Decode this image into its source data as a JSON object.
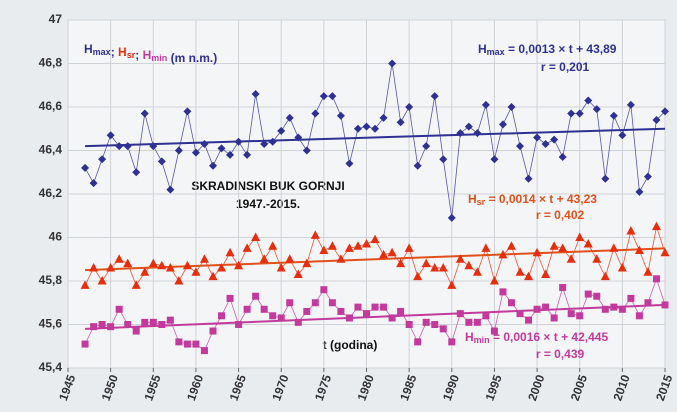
{
  "chart_data": {
    "type": "line",
    "title": "SKRADINSKI BUK GORNJI",
    "subtitle": "1947.-2015.",
    "x_label": "t (godina)",
    "x": [
      1947,
      1948,
      1949,
      1950,
      1951,
      1952,
      1953,
      1954,
      1955,
      1956,
      1957,
      1958,
      1959,
      1960,
      1961,
      1962,
      1963,
      1964,
      1965,
      1966,
      1967,
      1968,
      1969,
      1970,
      1971,
      1972,
      1973,
      1974,
      1975,
      1976,
      1977,
      1978,
      1979,
      1980,
      1981,
      1982,
      1983,
      1984,
      1985,
      1986,
      1987,
      1988,
      1989,
      1990,
      1991,
      1992,
      1993,
      1994,
      1995,
      1996,
      1997,
      1998,
      1999,
      2000,
      2001,
      2002,
      2003,
      2004,
      2005,
      2006,
      2007,
      2008,
      2009,
      2010,
      2011,
      2012,
      2013,
      2014,
      2015
    ],
    "series": [
      {
        "name": "H",
        "sub": "max",
        "color": "#2e3192",
        "marker": "diamond",
        "values": [
          46.32,
          46.25,
          46.36,
          46.47,
          46.42,
          46.42,
          46.3,
          46.57,
          46.42,
          46.35,
          46.22,
          46.4,
          46.58,
          46.39,
          46.43,
          46.33,
          46.41,
          46.38,
          46.44,
          46.38,
          46.66,
          46.43,
          46.44,
          46.49,
          46.55,
          46.46,
          46.4,
          46.57,
          46.65,
          46.65,
          46.56,
          46.34,
          46.5,
          46.51,
          46.5,
          46.55,
          46.8,
          46.53,
          46.6,
          46.33,
          46.42,
          46.65,
          46.36,
          46.09,
          46.48,
          46.51,
          46.48,
          46.61,
          46.36,
          46.52,
          46.6,
          46.42,
          46.27,
          46.46,
          46.43,
          46.45,
          46.37,
          46.57,
          46.57,
          46.63,
          46.59,
          46.27,
          46.56,
          46.47,
          46.61,
          46.21,
          46.28,
          46.54,
          46.58
        ]
      },
      {
        "name": "H",
        "sub": "sr",
        "color": "#e62e0e",
        "marker": "triangle",
        "values": [
          45.78,
          45.86,
          45.8,
          45.86,
          45.9,
          45.88,
          45.78,
          45.84,
          45.88,
          45.87,
          45.86,
          45.8,
          45.87,
          45.84,
          45.9,
          45.82,
          45.86,
          45.93,
          45.87,
          45.95,
          46.0,
          45.9,
          45.96,
          45.86,
          45.9,
          45.83,
          45.88,
          46.01,
          45.94,
          45.96,
          45.9,
          45.95,
          45.96,
          45.97,
          45.99,
          45.92,
          45.93,
          45.88,
          45.95,
          45.82,
          45.88,
          45.86,
          45.86,
          45.78,
          45.9,
          45.87,
          45.84,
          45.95,
          45.8,
          45.92,
          45.96,
          45.84,
          45.82,
          45.93,
          45.83,
          45.96,
          45.95,
          45.9,
          46.0,
          45.97,
          45.9,
          45.82,
          45.95,
          45.86,
          46.03,
          45.94,
          45.84,
          46.05,
          45.93
        ]
      },
      {
        "name": "H",
        "sub": "min",
        "color": "#c23a9c",
        "marker": "square",
        "values": [
          45.51,
          45.59,
          45.6,
          45.59,
          45.67,
          45.6,
          45.57,
          45.61,
          45.61,
          45.6,
          45.62,
          45.52,
          45.51,
          45.51,
          45.48,
          45.57,
          45.64,
          45.72,
          45.6,
          45.67,
          45.73,
          45.67,
          45.64,
          45.63,
          45.7,
          45.61,
          45.66,
          45.7,
          45.76,
          45.7,
          45.66,
          45.63,
          45.68,
          45.65,
          45.68,
          45.68,
          45.63,
          45.66,
          45.6,
          45.52,
          45.61,
          45.6,
          45.58,
          45.52,
          45.65,
          45.61,
          45.61,
          45.64,
          45.57,
          45.75,
          45.7,
          45.65,
          45.62,
          45.67,
          45.68,
          45.63,
          45.77,
          45.65,
          45.64,
          45.74,
          45.73,
          45.67,
          45.68,
          45.67,
          45.72,
          45.64,
          45.7,
          45.81,
          45.69
        ]
      }
    ],
    "legend_sep": "; ",
    "unit_label": " (m n.m.)",
    "trends": [
      {
        "symbol": "H",
        "sub": "max",
        "equation": " = 0,0013 × t + 43,89",
        "r": "r = 0,201",
        "color": "#2e3192",
        "x": [
          1947,
          2015
        ],
        "values": [
          46.42,
          46.5
        ]
      },
      {
        "symbol": "H",
        "sub": "sr",
        "equation": " = 0,0014 × t + 43,23",
        "r": "r = 0,402",
        "color": "#e0501a",
        "x": [
          1947,
          2015
        ],
        "values": [
          45.85,
          45.95
        ]
      },
      {
        "symbol": "H",
        "sub": "min",
        "equation": " = 0,0016 × t + 42,445",
        "r": "r = 0,439",
        "color": "#c23a9c",
        "x": [
          1947,
          2015
        ],
        "values": [
          45.58,
          45.69
        ]
      }
    ],
    "xlim": [
      1945,
      2015
    ],
    "xticks": [
      1945,
      1950,
      1955,
      1960,
      1965,
      1970,
      1975,
      1980,
      1985,
      1990,
      1995,
      2000,
      2005,
      2010,
      2015
    ],
    "ylim": [
      45.4,
      47
    ],
    "yticks": [
      {
        "value": 45.4,
        "label": "45,4"
      },
      {
        "value": 45.6,
        "label": "45,6"
      },
      {
        "value": 45.8,
        "label": "45,8"
      },
      46,
      {
        "value": 46.2,
        "label": "46,2"
      },
      {
        "value": 46.4,
        "label": "46,4"
      },
      {
        "value": 46.6,
        "label": "46,6"
      },
      {
        "value": 46.8,
        "label": "46,8"
      },
      47
    ],
    "grid": true
  }
}
